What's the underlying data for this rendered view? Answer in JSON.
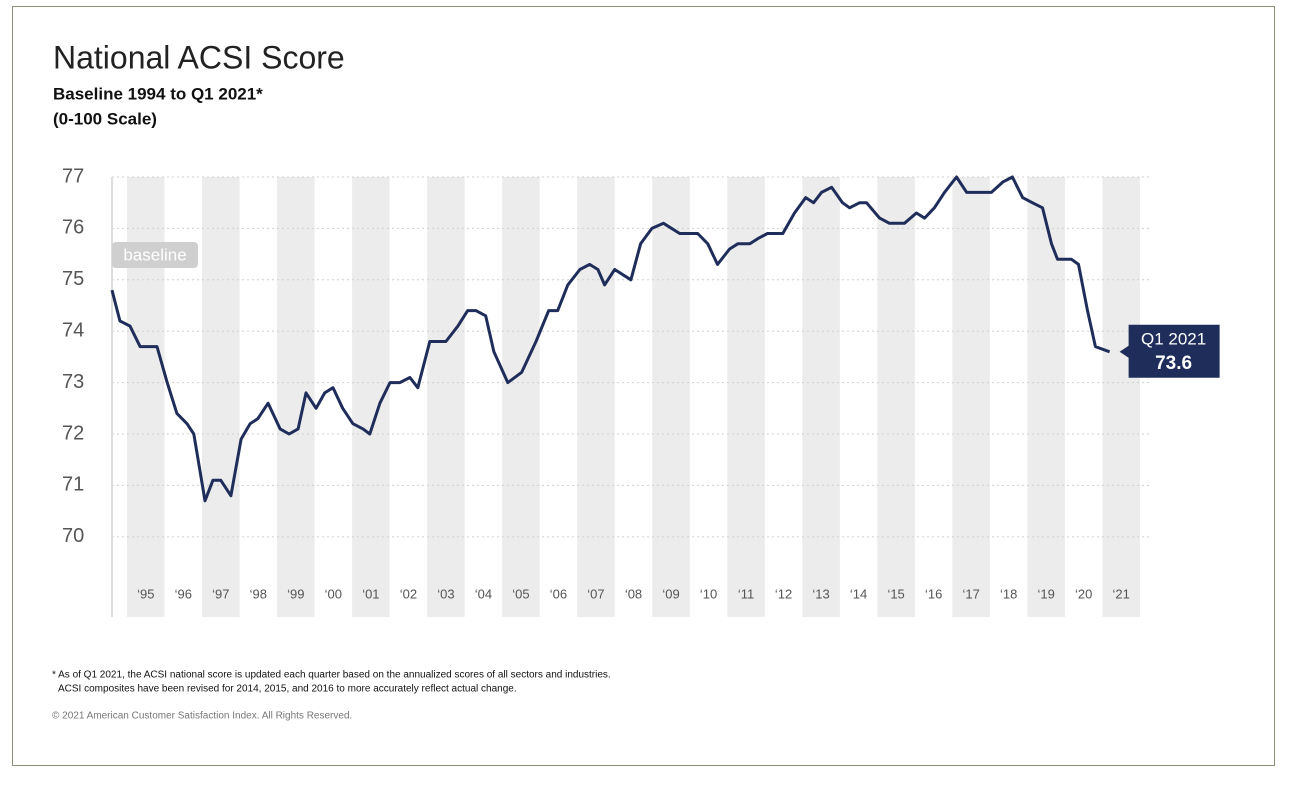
{
  "chart_data": {
    "type": "line",
    "title": "National ACSI Score",
    "subtitle": [
      "Baseline 1994 to Q1 2021*",
      "(0-100 Scale)"
    ],
    "annotations": {
      "baseline": "baseline",
      "latest": "Q1 2021"
    },
    "notes": [
      "* As of Q1 2021, the ACSI national score is updated each quarter based on the annualized scores of all sectors and industries.",
      "ACSI composites have been revised for 2014, 2015, and 2016 to more accurately reflect actual change."
    ],
    "copyright": "© 2021 American Customer Satisfaction Index. All Rights Reserved.",
    "color": "#1f2d5a",
    "x": [
      1994.6,
      1994.81,
      1995.08,
      1995.35,
      1995.8,
      1996.07,
      1996.33,
      1996.6,
      1996.78,
      1997.08,
      1997.29,
      1997.5,
      1997.77,
      1998.04,
      1998.28,
      1998.49,
      1998.76,
      1999.08,
      1999.32,
      1999.56,
      1999.77,
      2000.04,
      2000.27,
      2000.49,
      2000.75,
      2001.02,
      2001.29,
      2001.47,
      2001.74,
      2002.01,
      2002.27,
      2002.54,
      2002.75,
      2003.07,
      2003.5,
      2003.82,
      2004.08,
      2004.3,
      2004.56,
      2004.78,
      2005.15,
      2005.52,
      2005.9,
      2006.24,
      2006.48,
      2006.75,
      2007.07,
      2007.33,
      2007.55,
      2007.73,
      2008.0,
      2008.43,
      2008.69,
      2008.99,
      2009.3,
      2009.73,
      2010.21,
      2010.48,
      2010.74,
      2011.06,
      2011.28,
      2011.6,
      2011.81,
      2012.07,
      2012.48,
      2012.79,
      2013.09,
      2013.3,
      2013.51,
      2013.78,
      2014.07,
      2014.26,
      2014.53,
      2014.71,
      2015.06,
      2015.32,
      2015.72,
      2016.04,
      2016.26,
      2016.52,
      2016.79,
      2017.11,
      2017.38,
      2018.04,
      2018.34,
      2018.6,
      2018.87,
      2019.13,
      2019.4,
      2019.64,
      2019.8,
      2020.17,
      2020.36,
      2020.6,
      2020.81,
      2021.19
    ],
    "values": [
      74.8,
      74.2,
      74.1,
      73.7,
      73.7,
      73.0,
      72.4,
      72.2,
      72.0,
      70.7,
      71.1,
      71.1,
      70.8,
      71.9,
      72.2,
      72.3,
      72.6,
      72.1,
      72.0,
      72.1,
      72.8,
      72.5,
      72.8,
      72.9,
      72.5,
      72.2,
      72.1,
      72.0,
      72.6,
      73.0,
      73.0,
      73.1,
      72.9,
      73.8,
      73.8,
      74.1,
      74.4,
      74.4,
      74.3,
      73.6,
      73.0,
      73.2,
      73.8,
      74.4,
      74.4,
      74.9,
      75.2,
      75.3,
      75.2,
      74.9,
      75.2,
      75.0,
      75.7,
      76.0,
      76.1,
      75.9,
      75.9,
      75.7,
      75.3,
      75.6,
      75.7,
      75.7,
      75.8,
      75.9,
      75.9,
      76.3,
      76.6,
      76.5,
      76.7,
      76.8,
      76.5,
      76.4,
      76.5,
      76.5,
      76.2,
      76.1,
      76.1,
      76.3,
      76.2,
      76.4,
      76.7,
      77.0,
      76.7,
      76.7,
      76.9,
      77.0,
      76.6,
      76.5,
      76.4,
      75.7,
      75.4,
      75.4,
      75.3,
      74.4,
      73.7,
      73.6
    ],
    "xlim": [
      1994.6,
      2022
    ],
    "ylim": [
      68.44,
      77
    ],
    "yticks": [
      70,
      71,
      72,
      73,
      74,
      75,
      76,
      77
    ],
    "xticks": [
      {
        "value": 1995.5,
        "label": "‘95"
      },
      {
        "value": 1996.5,
        "label": "‘96"
      },
      {
        "value": 1997.5,
        "label": "‘97"
      },
      {
        "value": 1998.5,
        "label": "‘98"
      },
      {
        "value": 1999.5,
        "label": "‘99"
      },
      {
        "value": 2000.5,
        "label": "‘00"
      },
      {
        "value": 2001.5,
        "label": "‘01"
      },
      {
        "value": 2002.5,
        "label": "‘02"
      },
      {
        "value": 2003.5,
        "label": "‘03"
      },
      {
        "value": 2004.5,
        "label": "‘04"
      },
      {
        "value": 2005.5,
        "label": "‘05"
      },
      {
        "value": 2006.5,
        "label": "‘06"
      },
      {
        "value": 2007.5,
        "label": "‘07"
      },
      {
        "value": 2008.5,
        "label": "‘08"
      },
      {
        "value": 2009.5,
        "label": "‘09"
      },
      {
        "value": 2010.5,
        "label": "‘10"
      },
      {
        "value": 2011.5,
        "label": "‘11"
      },
      {
        "value": 2012.5,
        "label": "‘12"
      },
      {
        "value": 2013.5,
        "label": "‘13"
      },
      {
        "value": 2014.5,
        "label": "‘14"
      },
      {
        "value": 2015.5,
        "label": "‘15"
      },
      {
        "value": 2016.5,
        "label": "‘16"
      },
      {
        "value": 2017.5,
        "label": "‘17"
      },
      {
        "value": 2018.5,
        "label": "‘18"
      },
      {
        "value": 2019.5,
        "label": "‘19"
      },
      {
        "value": 2020.5,
        "label": "‘20"
      },
      {
        "value": 2021.5,
        "label": "‘21"
      }
    ],
    "grid": true
  }
}
